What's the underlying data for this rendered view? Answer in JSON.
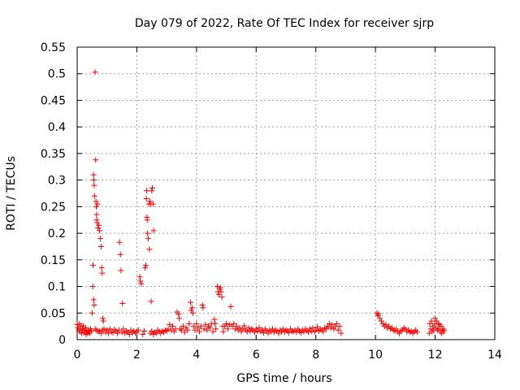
{
  "chart_data": {
    "type": "scatter",
    "title": "Day 079 of 2022, Rate Of TEC Index for receiver sjrp",
    "xlabel": "GPS time / hours",
    "ylabel": "ROTI / TECUs",
    "xlim": [
      0,
      14
    ],
    "ylim": [
      0,
      0.55
    ],
    "xticks": [
      "0",
      "2",
      "4",
      "6",
      "8",
      "10",
      "12",
      "14"
    ],
    "yticks": [
      "0",
      "0.05",
      "0.1",
      "0.15",
      "0.2",
      "0.25",
      "0.3",
      "0.35",
      "0.4",
      "0.45",
      "0.5",
      "0.55"
    ],
    "grid": true,
    "marker": "+",
    "series": [
      {
        "color": "#ff0000",
        "points": [
          [
            0.0,
            0.028
          ],
          [
            0.03,
            0.022
          ],
          [
            0.06,
            0.018
          ],
          [
            0.08,
            0.03
          ],
          [
            0.1,
            0.015
          ],
          [
            0.13,
            0.025
          ],
          [
            0.15,
            0.012
          ],
          [
            0.18,
            0.02
          ],
          [
            0.2,
            0.026
          ],
          [
            0.22,
            0.018
          ],
          [
            0.25,
            0.013
          ],
          [
            0.28,
            0.022
          ],
          [
            0.3,
            0.01
          ],
          [
            0.32,
            0.016
          ],
          [
            0.35,
            0.012
          ],
          [
            0.38,
            0.018
          ],
          [
            0.4,
            0.015
          ],
          [
            0.42,
            0.012
          ],
          [
            0.45,
            0.02
          ],
          [
            0.48,
            0.016
          ],
          [
            0.5,
            0.05
          ],
          [
            0.52,
            0.1
          ],
          [
            0.53,
            0.14
          ],
          [
            0.55,
            0.31
          ],
          [
            0.56,
            0.3
          ],
          [
            0.57,
            0.29
          ],
          [
            0.58,
            0.27
          ],
          [
            0.6,
            0.503
          ],
          [
            0.62,
            0.338
          ],
          [
            0.63,
            0.26
          ],
          [
            0.64,
            0.25
          ],
          [
            0.65,
            0.235
          ],
          [
            0.66,
            0.225
          ],
          [
            0.67,
            0.22
          ],
          [
            0.68,
            0.255
          ],
          [
            0.7,
            0.21
          ],
          [
            0.72,
            0.215
          ],
          [
            0.75,
            0.205
          ],
          [
            0.78,
            0.19
          ],
          [
            0.8,
            0.175
          ],
          [
            0.82,
            0.135
          ],
          [
            0.84,
            0.125
          ],
          [
            0.86,
            0.04
          ],
          [
            0.88,
            0.035
          ],
          [
            0.9,
            0.02
          ],
          [
            0.55,
            0.075
          ],
          [
            0.57,
            0.065
          ],
          [
            0.6,
            0.02
          ],
          [
            0.65,
            0.018
          ],
          [
            0.7,
            0.015
          ],
          [
            0.75,
            0.016
          ],
          [
            0.8,
            0.012
          ],
          [
            0.85,
            0.018
          ],
          [
            0.95,
            0.014
          ],
          [
            1.0,
            0.018
          ],
          [
            1.05,
            0.012
          ],
          [
            1.1,
            0.02
          ],
          [
            1.15,
            0.015
          ],
          [
            1.2,
            0.013
          ],
          [
            1.25,
            0.019
          ],
          [
            1.3,
            0.016
          ],
          [
            1.35,
            0.012
          ],
          [
            1.4,
            0.018
          ],
          [
            1.42,
            0.183
          ],
          [
            1.45,
            0.16
          ],
          [
            1.47,
            0.13
          ],
          [
            1.52,
            0.068
          ],
          [
            1.5,
            0.014
          ],
          [
            1.55,
            0.02
          ],
          [
            1.6,
            0.012
          ],
          [
            1.65,
            0.016
          ],
          [
            1.7,
            0.014
          ],
          [
            1.75,
            0.01
          ],
          [
            1.8,
            0.018
          ],
          [
            1.85,
            0.013
          ],
          [
            1.9,
            0.016
          ],
          [
            1.95,
            0.012
          ],
          [
            2.0,
            0.015
          ],
          [
            2.05,
            0.018
          ],
          [
            2.1,
            0.118
          ],
          [
            2.12,
            0.11
          ],
          [
            2.15,
            0.105
          ],
          [
            2.2,
            0.01
          ],
          [
            2.25,
            0.016
          ],
          [
            2.28,
            0.135
          ],
          [
            2.3,
            0.14
          ],
          [
            2.32,
            0.265
          ],
          [
            2.33,
            0.28
          ],
          [
            2.34,
            0.23
          ],
          [
            2.35,
            0.225
          ],
          [
            2.36,
            0.2
          ],
          [
            2.38,
            0.19
          ],
          [
            2.4,
            0.255
          ],
          [
            2.42,
            0.17
          ],
          [
            2.44,
            0.26
          ],
          [
            2.46,
            0.255
          ],
          [
            2.5,
            0.28
          ],
          [
            2.52,
            0.285
          ],
          [
            2.54,
            0.255
          ],
          [
            2.56,
            0.205
          ],
          [
            2.48,
            0.072
          ],
          [
            2.45,
            0.012
          ],
          [
            2.5,
            0.016
          ],
          [
            2.55,
            0.01
          ],
          [
            2.6,
            0.014
          ],
          [
            2.65,
            0.012
          ],
          [
            2.7,
            0.018
          ],
          [
            2.75,
            0.015
          ],
          [
            2.8,
            0.012
          ],
          [
            2.85,
            0.016
          ],
          [
            2.9,
            0.014
          ],
          [
            2.95,
            0.018
          ],
          [
            3.0,
            0.016
          ],
          [
            3.05,
            0.02
          ],
          [
            3.1,
            0.028
          ],
          [
            3.15,
            0.018
          ],
          [
            3.2,
            0.025
          ],
          [
            3.25,
            0.015
          ],
          [
            3.3,
            0.02
          ],
          [
            3.35,
            0.052
          ],
          [
            3.4,
            0.048
          ],
          [
            3.42,
            0.04
          ],
          [
            3.45,
            0.02
          ],
          [
            3.5,
            0.018
          ],
          [
            3.55,
            0.025
          ],
          [
            3.6,
            0.014
          ],
          [
            3.65,
            0.022
          ],
          [
            3.7,
            0.018
          ],
          [
            3.75,
            0.03
          ],
          [
            3.8,
            0.07
          ],
          [
            3.82,
            0.055
          ],
          [
            3.85,
            0.06
          ],
          [
            3.88,
            0.05
          ],
          [
            3.9,
            0.025
          ],
          [
            3.95,
            0.018
          ],
          [
            4.0,
            0.03
          ],
          [
            4.05,
            0.022
          ],
          [
            4.1,
            0.015
          ],
          [
            4.15,
            0.025
          ],
          [
            4.2,
            0.065
          ],
          [
            4.22,
            0.06
          ],
          [
            4.25,
            0.02
          ],
          [
            4.3,
            0.028
          ],
          [
            4.35,
            0.018
          ],
          [
            4.4,
            0.025
          ],
          [
            4.45,
            0.022
          ],
          [
            4.5,
            0.03
          ],
          [
            4.55,
            0.015
          ],
          [
            4.6,
            0.038
          ],
          [
            4.62,
            0.03
          ],
          [
            4.65,
            0.02
          ],
          [
            4.7,
            0.1
          ],
          [
            4.72,
            0.09
          ],
          [
            4.75,
            0.085
          ],
          [
            4.78,
            0.095
          ],
          [
            4.8,
            0.098
          ],
          [
            4.82,
            0.09
          ],
          [
            4.85,
            0.08
          ],
          [
            4.88,
            0.025
          ],
          [
            4.9,
            0.015
          ],
          [
            4.95,
            0.025
          ],
          [
            5.0,
            0.03
          ],
          [
            5.05,
            0.02
          ],
          [
            5.1,
            0.028
          ],
          [
            5.15,
            0.062
          ],
          [
            5.2,
            0.025
          ],
          [
            5.25,
            0.03
          ],
          [
            5.3,
            0.02
          ],
          [
            5.35,
            0.025
          ],
          [
            5.4,
            0.018
          ],
          [
            5.45,
            0.022
          ],
          [
            5.5,
            0.015
          ],
          [
            5.55,
            0.02
          ],
          [
            5.6,
            0.026
          ],
          [
            5.65,
            0.018
          ],
          [
            5.7,
            0.015
          ],
          [
            5.75,
            0.022
          ],
          [
            5.8,
            0.016
          ],
          [
            5.85,
            0.02
          ],
          [
            5.9,
            0.018
          ],
          [
            5.95,
            0.014
          ],
          [
            6.0,
            0.02
          ],
          [
            6.05,
            0.016
          ],
          [
            6.1,
            0.022
          ],
          [
            6.15,
            0.015
          ],
          [
            6.2,
            0.018
          ],
          [
            6.25,
            0.013
          ],
          [
            6.3,
            0.02
          ],
          [
            6.35,
            0.016
          ],
          [
            6.4,
            0.012
          ],
          [
            6.45,
            0.018
          ],
          [
            6.5,
            0.015
          ],
          [
            6.55,
            0.02
          ],
          [
            6.6,
            0.014
          ],
          [
            6.65,
            0.018
          ],
          [
            6.7,
            0.016
          ],
          [
            6.75,
            0.012
          ],
          [
            6.8,
            0.018
          ],
          [
            6.85,
            0.015
          ],
          [
            6.9,
            0.02
          ],
          [
            6.95,
            0.014
          ],
          [
            7.0,
            0.018
          ],
          [
            7.05,
            0.016
          ],
          [
            7.1,
            0.013
          ],
          [
            7.15,
            0.02
          ],
          [
            7.2,
            0.016
          ],
          [
            7.25,
            0.015
          ],
          [
            7.3,
            0.018
          ],
          [
            7.35,
            0.014
          ],
          [
            7.4,
            0.02
          ],
          [
            7.45,
            0.016
          ],
          [
            7.5,
            0.013
          ],
          [
            7.55,
            0.018
          ],
          [
            7.6,
            0.015
          ],
          [
            7.65,
            0.02
          ],
          [
            7.7,
            0.017
          ],
          [
            7.75,
            0.014
          ],
          [
            7.8,
            0.02
          ],
          [
            7.85,
            0.016
          ],
          [
            7.9,
            0.022
          ],
          [
            7.95,
            0.015
          ],
          [
            8.0,
            0.018
          ],
          [
            8.05,
            0.024
          ],
          [
            8.1,
            0.016
          ],
          [
            8.15,
            0.02
          ],
          [
            8.2,
            0.018
          ],
          [
            8.25,
            0.015
          ],
          [
            8.3,
            0.022
          ],
          [
            8.35,
            0.02
          ],
          [
            8.4,
            0.025
          ],
          [
            8.45,
            0.03
          ],
          [
            8.5,
            0.022
          ],
          [
            8.55,
            0.028
          ],
          [
            8.6,
            0.02
          ],
          [
            8.65,
            0.025
          ],
          [
            8.7,
            0.03
          ],
          [
            8.75,
            0.018
          ],
          [
            8.8,
            0.025
          ],
          [
            8.85,
            0.012
          ],
          [
            10.05,
            0.05
          ],
          [
            10.08,
            0.045
          ],
          [
            10.1,
            0.048
          ],
          [
            10.15,
            0.04
          ],
          [
            10.2,
            0.035
          ],
          [
            10.25,
            0.03
          ],
          [
            10.3,
            0.025
          ],
          [
            10.35,
            0.028
          ],
          [
            10.4,
            0.022
          ],
          [
            10.45,
            0.025
          ],
          [
            10.5,
            0.02
          ],
          [
            10.55,
            0.022
          ],
          [
            10.6,
            0.018
          ],
          [
            10.65,
            0.016
          ],
          [
            10.7,
            0.02
          ],
          [
            10.75,
            0.015
          ],
          [
            10.8,
            0.012
          ],
          [
            10.85,
            0.016
          ],
          [
            10.9,
            0.018
          ],
          [
            10.95,
            0.022
          ],
          [
            11.0,
            0.02
          ],
          [
            11.05,
            0.015
          ],
          [
            11.1,
            0.018
          ],
          [
            11.15,
            0.014
          ],
          [
            11.2,
            0.016
          ],
          [
            11.25,
            0.012
          ],
          [
            11.3,
            0.015
          ],
          [
            11.35,
            0.018
          ],
          [
            11.4,
            0.014
          ],
          [
            11.8,
            0.012
          ],
          [
            11.82,
            0.03
          ],
          [
            11.85,
            0.02
          ],
          [
            11.88,
            0.035
          ],
          [
            11.9,
            0.015
          ],
          [
            11.92,
            0.025
          ],
          [
            11.95,
            0.018
          ],
          [
            11.98,
            0.03
          ],
          [
            12.0,
            0.04
          ],
          [
            12.02,
            0.022
          ],
          [
            12.05,
            0.035
          ],
          [
            12.08,
            0.018
          ],
          [
            12.1,
            0.03
          ],
          [
            12.12,
            0.02
          ],
          [
            12.15,
            0.028
          ],
          [
            12.18,
            0.015
          ],
          [
            12.2,
            0.025
          ],
          [
            12.22,
            0.012
          ],
          [
            12.25,
            0.02
          ],
          [
            12.28,
            0.015
          ],
          [
            12.3,
            0.018
          ]
        ]
      }
    ]
  }
}
